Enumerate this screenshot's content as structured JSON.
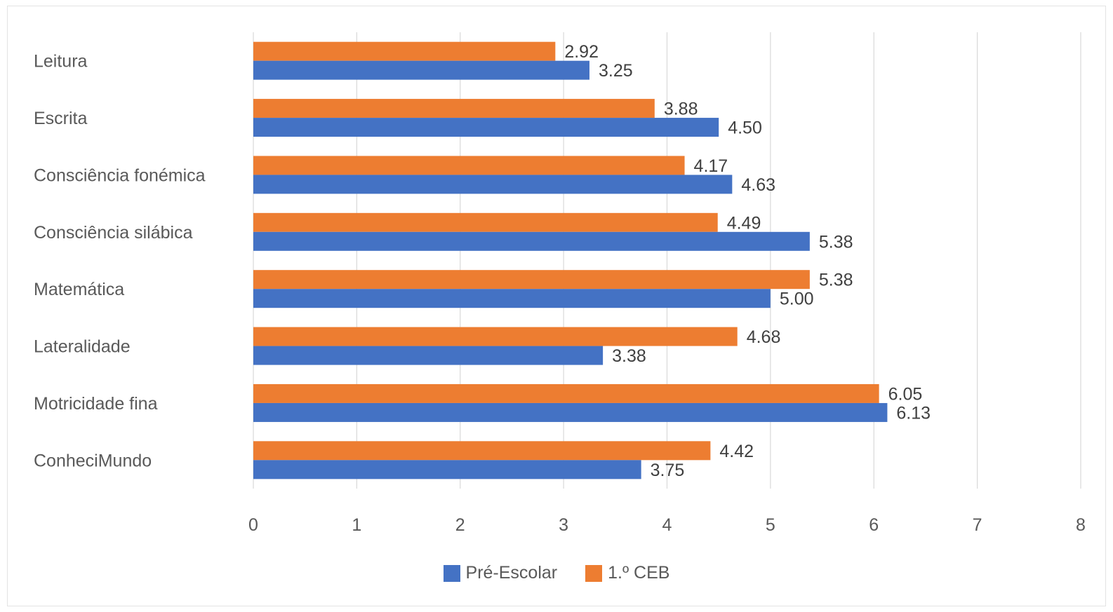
{
  "chart_data": {
    "type": "bar",
    "orientation": "horizontal",
    "categories": [
      "Leitura",
      "Escrita",
      "Consciência fonémica",
      "Consciência silábica",
      "Matemática",
      "Lateralidade",
      "Motricidade fina",
      "ConheciMundo"
    ],
    "series": [
      {
        "name": "Pré-Escolar",
        "color": "#4472C4",
        "values": [
          3.25,
          4.5,
          4.63,
          5.38,
          5.0,
          3.38,
          6.13,
          3.75
        ],
        "labels": [
          "3.25",
          "4.50",
          "4.63",
          "5.38",
          "5.00",
          "3.38",
          "6.13",
          "3.75"
        ]
      },
      {
        "name": "1.º CEB",
        "color": "#ED7D31",
        "values": [
          2.92,
          3.88,
          4.17,
          4.49,
          5.38,
          4.68,
          6.05,
          4.42
        ],
        "labels": [
          "2.92",
          "3.88",
          "4.17",
          "4.49",
          "5.38",
          "4.68",
          "6.05",
          "4.42"
        ]
      }
    ],
    "xlim": [
      0,
      8
    ],
    "ticks": [
      "0",
      "1",
      "2",
      "3",
      "4",
      "5",
      "6",
      "7",
      "8"
    ],
    "grid": true,
    "legend_position": "bottom",
    "legend_order": [
      "Pré-Escolar",
      "1.º CEB"
    ]
  }
}
